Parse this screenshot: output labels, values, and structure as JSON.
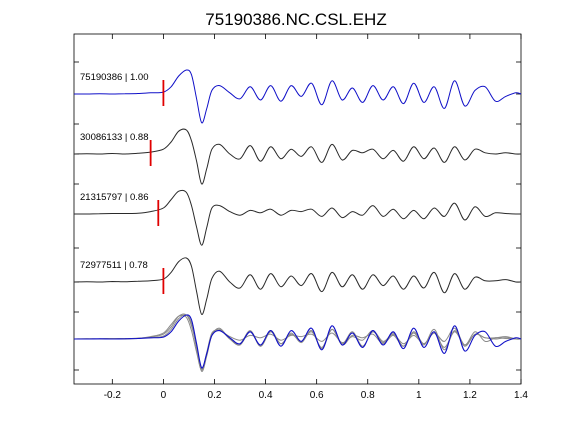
{
  "chart_data": {
    "type": "line",
    "title": "75190386.NC.CSL.EHZ",
    "xlabel": "",
    "ylabel": "",
    "xlim": [
      -0.35,
      1.4
    ],
    "x_ticks": [
      -0.2,
      0,
      0.2,
      0.4,
      0.6,
      0.8,
      1,
      1.2,
      1.4
    ],
    "x_tick_labels": [
      "-0.2",
      "0",
      "0.2",
      "0.4",
      "0.6",
      "0.8",
      "1",
      "1.2",
      "1.4"
    ],
    "grid": false,
    "legend": "none",
    "colors": {
      "reference": "#1010c8",
      "correlated": "#2a2a2a",
      "overlay": "#8a8a8a",
      "pick_marker": "#e00000",
      "axes": "#000000"
    },
    "sample_times": [
      -0.35,
      -0.3,
      -0.25,
      -0.2,
      -0.15,
      -0.1,
      -0.05,
      0,
      0.03,
      0.06,
      0.09,
      0.11,
      0.13,
      0.15,
      0.17,
      0.19,
      0.22,
      0.26,
      0.3,
      0.34,
      0.38,
      0.42,
      0.46,
      0.5,
      0.54,
      0.58,
      0.62,
      0.66,
      0.7,
      0.74,
      0.78,
      0.82,
      0.86,
      0.9,
      0.94,
      0.98,
      1.02,
      1.06,
      1.1,
      1.14,
      1.18,
      1.22,
      1.26,
      1.3,
      1.34,
      1.38,
      1.4
    ],
    "series": [
      {
        "label": "75190386 | 1.00",
        "role": "reference",
        "pick_time": 0,
        "values": [
          0,
          0,
          0.01,
          0,
          0.01,
          0.02,
          0.05,
          0.08,
          0.3,
          0.75,
          1.0,
          0.8,
          -0.2,
          -1.2,
          -0.6,
          0.15,
          0.35,
          0.05,
          -0.2,
          0.3,
          -0.25,
          0.35,
          -0.3,
          0.35,
          -0.1,
          0.45,
          -0.45,
          0.55,
          -0.25,
          0.25,
          -0.35,
          0.35,
          -0.25,
          0.3,
          -0.4,
          0.45,
          -0.35,
          0.3,
          -0.6,
          0.55,
          -0.5,
          0.15,
          0.3,
          -0.3,
          -0.1,
          0.05,
          0
        ]
      },
      {
        "label": "30086133 | 0.88",
        "role": "correlated",
        "pick_time": -0.05,
        "values": [
          0,
          0.01,
          0,
          0.02,
          0,
          0.03,
          0.08,
          0.2,
          0.5,
          0.95,
          1.0,
          0.55,
          -0.3,
          -1.25,
          -0.6,
          0.2,
          0.4,
          0.0,
          -0.2,
          0.35,
          -0.3,
          0.3,
          -0.2,
          0.2,
          -0.1,
          0.3,
          -0.35,
          0.4,
          -0.25,
          0.15,
          0.05,
          0.2,
          -0.2,
          0.15,
          -0.3,
          0.3,
          -0.2,
          0.25,
          -0.35,
          0.3,
          -0.25,
          0.2,
          0.05,
          0.0,
          0.05,
          0,
          0
        ]
      },
      {
        "label": "21315797 | 0.86",
        "role": "correlated",
        "pick_time": -0.02,
        "values": [
          0,
          0,
          0.01,
          0.02,
          0.02,
          0.03,
          0.1,
          0.25,
          0.6,
          0.95,
          0.9,
          0.35,
          -0.55,
          -1.3,
          -0.55,
          0.25,
          0.35,
          0.1,
          -0.05,
          0.15,
          0.05,
          0.2,
          -0.05,
          0.15,
          0.1,
          0.2,
          -0.1,
          0.25,
          -0.15,
          0.1,
          -0.05,
          0.35,
          -0.1,
          0.2,
          -0.2,
          0.15,
          -0.2,
          0.25,
          -0.1,
          0.45,
          -0.25,
          0.3,
          -0.1,
          0.05,
          0.02,
          0,
          0
        ]
      },
      {
        "label": "72977511 | 0.78",
        "role": "correlated",
        "pick_time": 0,
        "values": [
          0,
          0.01,
          0,
          0.02,
          0.01,
          0.03,
          0.05,
          0.12,
          0.4,
          0.85,
          1.0,
          0.65,
          -0.4,
          -1.35,
          -0.7,
          0.15,
          0.45,
          0.0,
          -0.25,
          0.3,
          -0.3,
          0.35,
          -0.2,
          0.25,
          -0.15,
          0.35,
          -0.4,
          0.4,
          -0.2,
          0.3,
          -0.3,
          0.3,
          -0.15,
          0.25,
          -0.3,
          0.25,
          -0.25,
          0.4,
          -0.45,
          0.35,
          -0.3,
          0.2,
          0.05,
          0.05,
          0.1,
          0,
          0
        ]
      }
    ]
  }
}
